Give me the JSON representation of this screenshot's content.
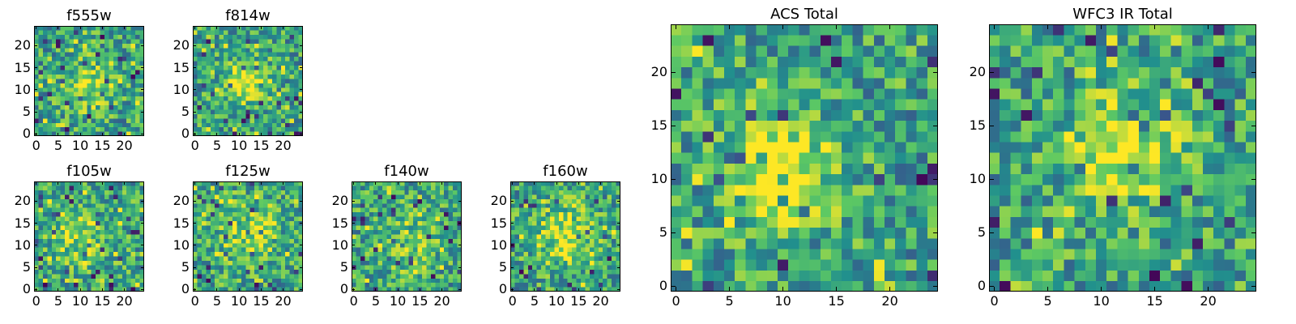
{
  "figure": {
    "background": "#ffffff"
  },
  "colormap": [
    "#440154",
    "#3b528b",
    "#21908d",
    "#5dc963",
    "#fde725"
  ],
  "chart_data": [
    {
      "id": "f555w",
      "type": "heatmap",
      "title": "f555w",
      "grid_size": 25,
      "xticks": [
        0,
        5,
        10,
        15,
        20
      ],
      "yticks": [
        0,
        5,
        10,
        15,
        20
      ],
      "xlim": [
        -0.5,
        24.5
      ],
      "ylim": [
        -0.5,
        24.5
      ],
      "values": "noise",
      "source": {
        "cx": 12,
        "cy": 11,
        "peak": 0.3,
        "sigma": 4
      }
    },
    {
      "id": "f814w",
      "type": "heatmap",
      "title": "f814w",
      "grid_size": 25,
      "xticks": [
        0,
        5,
        10,
        15,
        20
      ],
      "yticks": [
        0,
        5,
        10,
        15,
        20
      ],
      "xlim": [
        -0.5,
        24.5
      ],
      "ylim": [
        -0.5,
        24.5
      ],
      "values": "noise",
      "source": {
        "cx": 12,
        "cy": 12,
        "peak": 0.4,
        "sigma": 3.5
      }
    },
    {
      "id": "f105w",
      "type": "heatmap",
      "title": "f105w",
      "grid_size": 25,
      "xticks": [
        0,
        5,
        10,
        15,
        20
      ],
      "yticks": [
        0,
        5,
        10,
        15,
        20
      ],
      "xlim": [
        -0.5,
        24.5
      ],
      "ylim": [
        -0.5,
        24.5
      ],
      "values": "noise",
      "source": {
        "cx": 10,
        "cy": 12,
        "peak": 0.25,
        "sigma": 5
      }
    },
    {
      "id": "f125w",
      "type": "heatmap",
      "title": "f125w",
      "grid_size": 25,
      "xticks": [
        0,
        5,
        10,
        15,
        20
      ],
      "yticks": [
        0,
        5,
        10,
        15,
        20
      ],
      "xlim": [
        -0.5,
        24.5
      ],
      "ylim": [
        -0.5,
        24.5
      ],
      "values": "noise",
      "source": {
        "cx": 12,
        "cy": 12,
        "peak": 0.25,
        "sigma": 5
      }
    },
    {
      "id": "f140w",
      "type": "heatmap",
      "title": "f140w",
      "grid_size": 25,
      "xticks": [
        0,
        5,
        10,
        15,
        20
      ],
      "yticks": [
        0,
        5,
        10,
        15,
        20
      ],
      "xlim": [
        -0.5,
        24.5
      ],
      "ylim": [
        -0.5,
        24.5
      ],
      "values": "noise",
      "source": {
        "cx": 12,
        "cy": 10,
        "peak": 0.2,
        "sigma": 5
      }
    },
    {
      "id": "f160w",
      "type": "heatmap",
      "title": "f160w",
      "grid_size": 25,
      "xticks": [
        0,
        5,
        10,
        15,
        20
      ],
      "yticks": [
        0,
        5,
        10,
        15,
        20
      ],
      "xlim": [
        -0.5,
        24.5
      ],
      "ylim": [
        -0.5,
        24.5
      ],
      "values": "noise",
      "source": {
        "cx": 12,
        "cy": 12,
        "peak": 0.3,
        "sigma": 5
      }
    },
    {
      "id": "acs-total",
      "type": "heatmap",
      "title": "ACS Total",
      "grid_size": 25,
      "xticks": [
        0,
        5,
        10,
        15,
        20
      ],
      "yticks": [
        0,
        5,
        10,
        15,
        20
      ],
      "xlim": [
        -0.5,
        24.5
      ],
      "ylim": [
        -0.5,
        24.5
      ],
      "values": "noise",
      "source": {
        "cx": 10,
        "cy": 11,
        "peak": 0.45,
        "sigma": 3.5
      }
    },
    {
      "id": "wfc3-ir-total",
      "type": "heatmap",
      "title": "WFC3 IR Total",
      "grid_size": 25,
      "xticks": [
        0,
        5,
        10,
        15,
        20
      ],
      "yticks": [
        0,
        5,
        10,
        15,
        20
      ],
      "xlim": [
        -0.5,
        24.5
      ],
      "ylim": [
        -0.5,
        24.5
      ],
      "values": "noise",
      "source": {
        "cx": 12,
        "cy": 13,
        "peak": 0.4,
        "sigma": 3.5
      }
    }
  ]
}
